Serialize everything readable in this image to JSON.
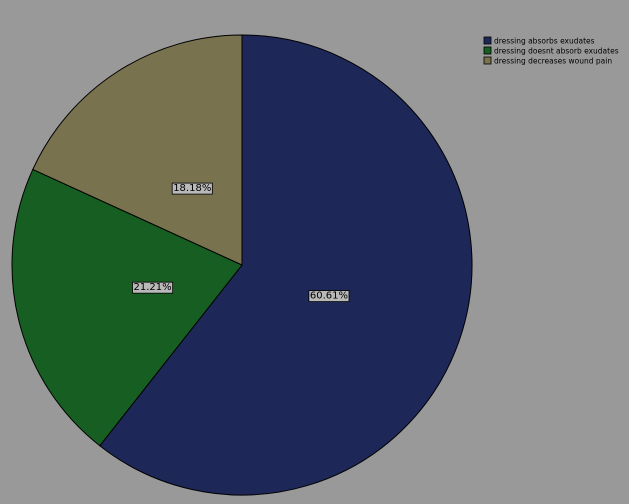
{
  "chart_data": {
    "type": "pie",
    "slices": [
      {
        "name": "dressing absorbs exudates",
        "value": 60.61,
        "label": "60.61%",
        "color": "#1e2858"
      },
      {
        "name": "dressing doesnt absorb exudates",
        "value": 21.21,
        "label": "21.21%",
        "color": "#165e22"
      },
      {
        "name": "dressing decreases wound pain",
        "value": 18.18,
        "label": "18.18%",
        "color": "#78724e"
      }
    ],
    "start_angle": "12 o'clock",
    "direction": "clockwise",
    "legend_position": "top-right",
    "background_color": "#999999"
  }
}
